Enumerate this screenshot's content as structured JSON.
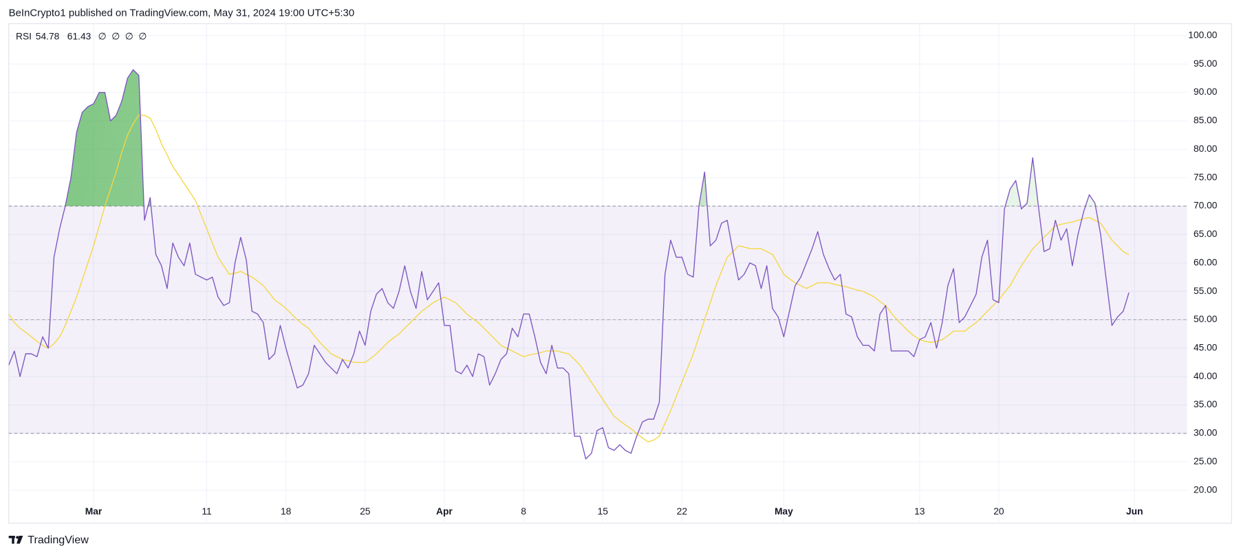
{
  "header": "BeInCrypto1 published on TradingView.com, May 31, 2024 19:00 UTC+5:30",
  "footer": "TradingView",
  "chart_data": {
    "type": "line",
    "legend": {
      "label": "RSI",
      "extras": [
        "∅",
        "∅",
        "∅",
        "∅"
      ]
    },
    "categories": [
      null,
      null,
      null,
      null,
      null,
      null,
      null,
      null,
      null,
      null,
      null,
      null,
      null,
      null,
      null,
      "Mar",
      null,
      null,
      null,
      null,
      null,
      null,
      null,
      null,
      null,
      null,
      null,
      null,
      null,
      null,
      null,
      null,
      null,
      null,
      null,
      "11",
      null,
      null,
      null,
      null,
      null,
      null,
      null,
      null,
      null,
      null,
      null,
      null,
      null,
      "18",
      null,
      null,
      null,
      null,
      null,
      null,
      null,
      null,
      null,
      null,
      null,
      null,
      null,
      "25",
      null,
      null,
      null,
      null,
      null,
      null,
      null,
      null,
      null,
      null,
      null,
      null,
      null,
      "Apr",
      null,
      null,
      null,
      null,
      null,
      null,
      null,
      null,
      null,
      null,
      null,
      null,
      null,
      "8",
      null,
      null,
      null,
      null,
      null,
      null,
      null,
      null,
      null,
      null,
      null,
      null,
      null,
      "15",
      null,
      null,
      null,
      null,
      null,
      null,
      null,
      null,
      null,
      null,
      null,
      null,
      null,
      "22",
      null,
      null,
      null,
      null,
      null,
      null,
      null,
      null,
      null,
      null,
      null,
      null,
      null,
      null,
      null,
      null,
      null,
      "May",
      null,
      null,
      null,
      null,
      null,
      null,
      null,
      null,
      null,
      null,
      null,
      null,
      null,
      null,
      null,
      null,
      null,
      null,
      null,
      null,
      null,
      null,
      null,
      "13",
      null,
      null,
      null,
      null,
      null,
      null,
      null,
      null,
      null,
      null,
      null,
      null,
      null,
      "20",
      null,
      null,
      null,
      null,
      null,
      null,
      null,
      null,
      null,
      null,
      null,
      null,
      null,
      null,
      null,
      null,
      null,
      null,
      null,
      null,
      null,
      null,
      null,
      "Jun"
    ],
    "series": [
      {
        "color": "#7e57c2",
        "values": [
          42,
          44.5,
          40,
          44,
          44,
          43.5,
          47,
          45,
          61,
          66,
          70,
          75,
          83,
          86.5,
          87.5,
          88,
          90,
          90,
          85,
          86,
          88.5,
          92.5,
          94,
          93,
          67.5,
          71.5,
          61.5,
          59.5,
          55.5,
          63.5,
          61,
          59.5,
          63.5,
          58,
          57.5,
          57,
          57.5,
          54,
          52.5,
          53,
          60,
          64.5,
          60.5,
          51.5,
          51,
          49.5,
          43,
          44,
          49,
          45,
          41.5,
          38,
          38.5,
          40.5,
          45.5,
          44,
          42.5,
          41.5,
          40.5,
          43,
          41.5,
          44,
          48,
          45.5,
          51.5,
          54.5,
          55.5,
          53,
          52,
          55,
          59.5,
          55,
          52,
          58.5,
          53.5,
          55,
          56.5,
          49,
          49,
          41,
          40.5,
          42,
          40,
          44,
          43.5,
          38.5,
          40.5,
          43,
          44,
          48.5,
          47,
          51,
          51,
          47,
          42.5,
          40.5,
          45.5,
          41.5,
          41.5,
          40.5,
          29.5,
          29.5,
          25.5,
          26.5,
          30.5,
          31,
          27.5,
          27,
          28,
          27,
          26.5,
          29.5,
          32,
          32.5,
          32.5,
          35.5,
          58,
          64,
          61,
          61,
          58,
          57.5,
          70,
          76,
          63,
          64,
          67,
          67.5,
          62,
          57,
          58,
          60,
          59.5,
          55.5,
          59.5,
          52,
          50.5,
          47,
          51.5,
          56,
          57.5,
          60,
          62.5,
          65.5,
          61.5,
          59,
          57,
          58,
          51,
          50.5,
          47,
          45.5,
          45.5,
          44.5,
          51,
          52.5,
          44.5,
          44.5,
          44.5,
          44.5,
          43.5,
          46.5,
          47,
          49.5,
          45,
          49.5,
          56,
          59,
          49.5,
          50.5,
          52.5,
          54.5,
          61,
          64,
          53.5,
          53,
          69.5,
          73,
          74.5,
          69.5,
          70.5,
          78.5,
          70,
          62,
          62.5,
          67.5,
          64,
          66,
          59.5,
          65,
          69,
          72,
          70.5,
          65,
          57,
          49,
          50.5,
          51.5,
          54.78,
          null
        ]
      },
      {
        "color": "#f5d742",
        "values": [
          51,
          49.5,
          48.5,
          47.8,
          47,
          46.2,
          45.5,
          45,
          45.8,
          47,
          49,
          51.5,
          54,
          57,
          60,
          63,
          66.5,
          70,
          73,
          76,
          79.5,
          82.5,
          84.5,
          86,
          86,
          85.5,
          83.5,
          81,
          79,
          77,
          75.5,
          74,
          72.5,
          71,
          68.5,
          66,
          63.5,
          61,
          59.5,
          58,
          58.2,
          58.5,
          58,
          57.5,
          56.8,
          56,
          54.8,
          53.5,
          52.8,
          52,
          51,
          50,
          49.2,
          48.5,
          47.2,
          46,
          45,
          44,
          43.5,
          43,
          42.8,
          42.5,
          42.5,
          42.5,
          43.2,
          44,
          45,
          46,
          46.8,
          47.5,
          48.5,
          49.5,
          50.5,
          51.5,
          52.2,
          53,
          53.5,
          54,
          53.5,
          53,
          52,
          51,
          50.2,
          49.5,
          48.5,
          47.5,
          46.5,
          45.5,
          45,
          44.5,
          44,
          43.5,
          43.8,
          44,
          44.2,
          44.5,
          44.5,
          44.5,
          44.2,
          44,
          43,
          42,
          40.5,
          39,
          37.5,
          36,
          34.5,
          33,
          32.2,
          31.5,
          30.8,
          30,
          29.2,
          28.5,
          28.8,
          29.5,
          31.8,
          34,
          36.5,
          39,
          41.5,
          44,
          47,
          50,
          53,
          56,
          58.5,
          61,
          62,
          63,
          62.8,
          62.5,
          62.5,
          62.5,
          62,
          61.5,
          59.8,
          58,
          57.2,
          56.5,
          56,
          55.5,
          56,
          56.5,
          56.5,
          56.5,
          56.2,
          56,
          55.8,
          55.5,
          55.2,
          55,
          54.5,
          54,
          53.2,
          52.5,
          51.2,
          50,
          49,
          48,
          47.2,
          46.5,
          46.2,
          46,
          46.2,
          46.5,
          47.2,
          48,
          48,
          48,
          48.8,
          49.5,
          50.5,
          51.5,
          52.5,
          53.5,
          54.8,
          56,
          57.8,
          59.5,
          61,
          62.5,
          63.5,
          64.5,
          65.5,
          66.5,
          66.8,
          67,
          67.2,
          67.5,
          67.8,
          68,
          67.5,
          67,
          65.5,
          64,
          63,
          62,
          61.43,
          null
        ]
      }
    ],
    "bands": {
      "upper": 70,
      "middle": 50,
      "lower": 30,
      "band_color": "#7e57c2",
      "overbought_color": "#4caf50"
    },
    "xlim": [
      0,
      208.3
    ],
    "ylim": [
      14.2,
      102.1
    ],
    "yticks": [
      {
        "value": 20,
        "label": "20.00"
      },
      {
        "value": 25,
        "label": "25.00"
      },
      {
        "value": 30,
        "label": "30.00"
      },
      {
        "value": 35,
        "label": "35.00"
      },
      {
        "value": 40,
        "label": "40.00"
      },
      {
        "value": 45,
        "label": "45.00"
      },
      {
        "value": 50,
        "label": "50.00"
      },
      {
        "value": 55,
        "label": "55.00"
      },
      {
        "value": 60,
        "label": "60.00"
      },
      {
        "value": 65,
        "label": "65.00"
      },
      {
        "value": 70,
        "label": "70.00"
      },
      {
        "value": 75,
        "label": "75.00"
      },
      {
        "value": 80,
        "label": "80.00"
      },
      {
        "value": 85,
        "label": "85.00"
      },
      {
        "value": 90,
        "label": "90.00"
      },
      {
        "value": 95,
        "label": "95.00"
      },
      {
        "value": 100,
        "label": "100.00"
      }
    ],
    "grid": true
  }
}
